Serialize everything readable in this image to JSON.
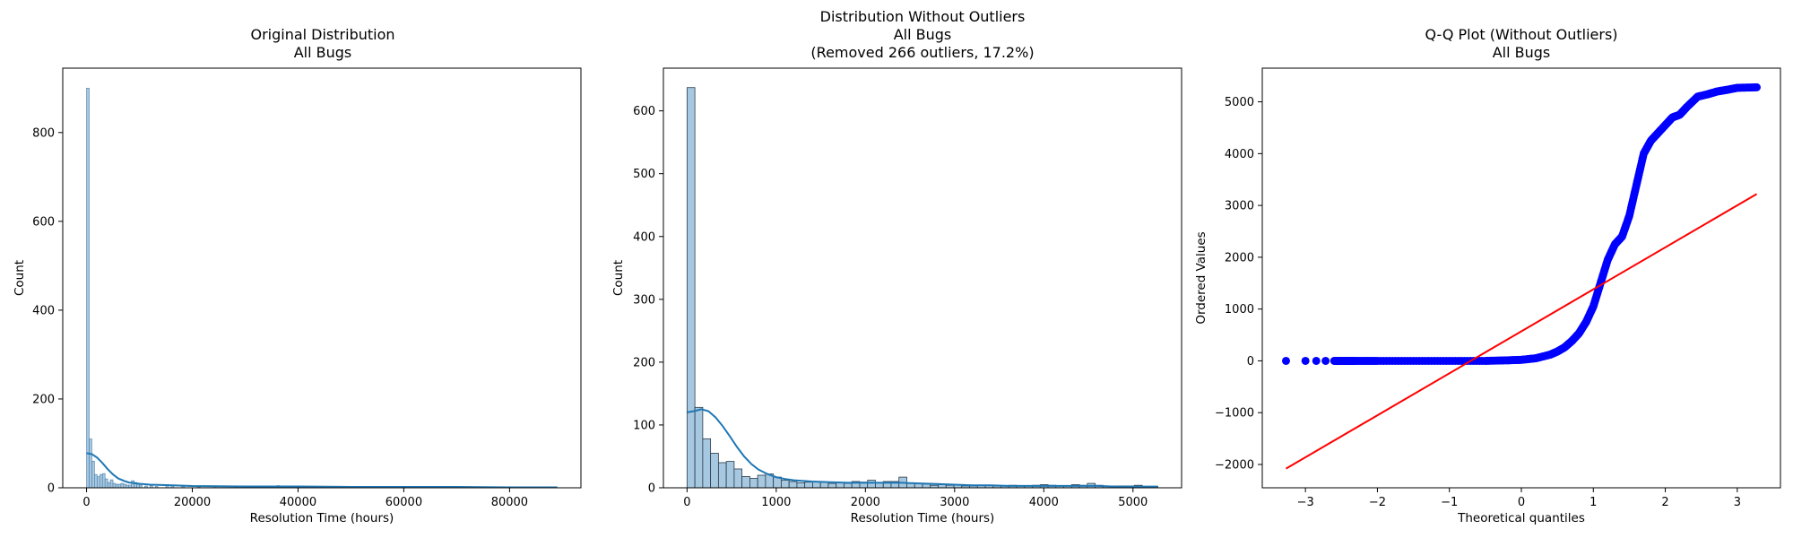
{
  "chart_data": [
    {
      "type": "histogram",
      "title": [
        "Original Distribution",
        "All Bugs"
      ],
      "xlabel": "Resolution Time (hours)",
      "ylabel": "Count",
      "xlim": [
        -4500,
        93500
      ],
      "ylim": [
        0,
        945
      ],
      "xticks": [
        0,
        20000,
        40000,
        60000,
        80000
      ],
      "yticks": [
        0,
        200,
        400,
        600,
        800
      ],
      "bin_width": 500,
      "bins": [
        {
          "x": 0,
          "count": 900
        },
        {
          "x": 500,
          "count": 110
        },
        {
          "x": 1000,
          "count": 60
        },
        {
          "x": 1500,
          "count": 30
        },
        {
          "x": 2000,
          "count": 25
        },
        {
          "x": 2500,
          "count": 30
        },
        {
          "x": 3000,
          "count": 32
        },
        {
          "x": 3500,
          "count": 20
        },
        {
          "x": 4000,
          "count": 12
        },
        {
          "x": 4500,
          "count": 18
        },
        {
          "x": 5000,
          "count": 10
        },
        {
          "x": 5500,
          "count": 8
        },
        {
          "x": 6000,
          "count": 8
        },
        {
          "x": 6500,
          "count": 10
        },
        {
          "x": 7000,
          "count": 8
        },
        {
          "x": 7500,
          "count": 6
        },
        {
          "x": 8000,
          "count": 6
        },
        {
          "x": 8500,
          "count": 16
        },
        {
          "x": 9000,
          "count": 12
        },
        {
          "x": 9500,
          "count": 8
        },
        {
          "x": 10000,
          "count": 6
        },
        {
          "x": 11000,
          "count": 4
        },
        {
          "x": 12000,
          "count": 5
        },
        {
          "x": 13000,
          "count": 3
        },
        {
          "x": 15000,
          "count": 7
        },
        {
          "x": 16000,
          "count": 4
        },
        {
          "x": 18000,
          "count": 3
        },
        {
          "x": 21000,
          "count": 2
        },
        {
          "x": 24000,
          "count": 3
        },
        {
          "x": 28000,
          "count": 2
        },
        {
          "x": 33000,
          "count": 2
        },
        {
          "x": 36000,
          "count": 5
        },
        {
          "x": 41000,
          "count": 2
        },
        {
          "x": 46000,
          "count": 2
        },
        {
          "x": 53000,
          "count": 3
        },
        {
          "x": 58000,
          "count": 2
        },
        {
          "x": 64000,
          "count": 2
        },
        {
          "x": 70000,
          "count": 3
        },
        {
          "x": 76000,
          "count": 2
        },
        {
          "x": 82000,
          "count": 2
        },
        {
          "x": 88500,
          "count": 2
        }
      ],
      "kde": [
        [
          0,
          78
        ],
        [
          1000,
          76
        ],
        [
          2000,
          68
        ],
        [
          3000,
          56
        ],
        [
          4000,
          42
        ],
        [
          5000,
          30
        ],
        [
          6000,
          21
        ],
        [
          7000,
          16
        ],
        [
          8000,
          12
        ],
        [
          10000,
          9
        ],
        [
          12000,
          7
        ],
        [
          15000,
          6
        ],
        [
          20000,
          4
        ],
        [
          30000,
          3
        ],
        [
          40000,
          3
        ],
        [
          50000,
          2
        ],
        [
          60000,
          2
        ],
        [
          70000,
          2
        ],
        [
          80000,
          1
        ],
        [
          89000,
          1
        ]
      ]
    },
    {
      "type": "histogram",
      "title": [
        "Distribution Without Outliers",
        "All Bugs",
        "(Removed 266 outliers, 17.2%)"
      ],
      "xlabel": "Resolution Time (hours)",
      "ylabel": "Count",
      "xlim": [
        -265,
        5545
      ],
      "ylim": [
        0,
        668
      ],
      "xticks": [
        0,
        1000,
        2000,
        3000,
        4000,
        5000
      ],
      "yticks": [
        0,
        100,
        200,
        300,
        400,
        500,
        600
      ],
      "bin_width": 88,
      "bin_start": 0,
      "counts": [
        637,
        128,
        78,
        55,
        40,
        42,
        30,
        18,
        15,
        20,
        22,
        17,
        12,
        10,
        8,
        9,
        10,
        9,
        7,
        8,
        7,
        10,
        9,
        12,
        8,
        10,
        10,
        17,
        8,
        7,
        6,
        4,
        5,
        4,
        5,
        3,
        3,
        4,
        4,
        3,
        3,
        4,
        3,
        3,
        4,
        5,
        4,
        3,
        3,
        5,
        4,
        7,
        4,
        3,
        3,
        3,
        3,
        4,
        2,
        2
      ],
      "kde": [
        [
          0,
          120
        ],
        [
          80,
          122
        ],
        [
          160,
          125
        ],
        [
          240,
          122
        ],
        [
          320,
          112
        ],
        [
          400,
          98
        ],
        [
          480,
          82
        ],
        [
          560,
          65
        ],
        [
          640,
          50
        ],
        [
          720,
          38
        ],
        [
          800,
          29
        ],
        [
          900,
          22
        ],
        [
          1000,
          17
        ],
        [
          1100,
          14
        ],
        [
          1200,
          12
        ],
        [
          1400,
          10
        ],
        [
          1600,
          9
        ],
        [
          1800,
          8
        ],
        [
          2000,
          8
        ],
        [
          2200,
          8
        ],
        [
          2400,
          8
        ],
        [
          2600,
          7
        ],
        [
          2800,
          6
        ],
        [
          3000,
          5
        ],
        [
          3200,
          4
        ],
        [
          3400,
          4
        ],
        [
          3600,
          3
        ],
        [
          3800,
          3
        ],
        [
          4000,
          3
        ],
        [
          4200,
          3
        ],
        [
          4400,
          3
        ],
        [
          4600,
          3
        ],
        [
          4800,
          2
        ],
        [
          5000,
          2
        ],
        [
          5280,
          2
        ]
      ]
    },
    {
      "type": "scatter",
      "title": [
        "Q-Q Plot (Without Outliers)",
        "All Bugs"
      ],
      "xlabel": "Theoretical quantiles",
      "ylabel": "Ordered Values",
      "xlim": [
        -3.6,
        3.6
      ],
      "ylim": [
        -2450,
        5650
      ],
      "xticks": [
        -3,
        -2,
        -1,
        0,
        1,
        2,
        3
      ],
      "yticks": [
        -2000,
        -1000,
        0,
        1000,
        2000,
        3000,
        4000,
        5000
      ],
      "points": [
        [
          -3.27,
          0
        ],
        [
          -3.0,
          0
        ],
        [
          -2.85,
          0
        ],
        [
          -2.72,
          0
        ],
        [
          -2.6,
          0
        ],
        [
          -2.45,
          0
        ],
        [
          -2.3,
          0
        ],
        [
          -2.0,
          0
        ],
        [
          -1.5,
          0
        ],
        [
          -1.0,
          0
        ],
        [
          -0.5,
          0
        ],
        [
          -0.2,
          10
        ],
        [
          0.0,
          20
        ],
        [
          0.2,
          50
        ],
        [
          0.4,
          120
        ],
        [
          0.5,
          180
        ],
        [
          0.6,
          260
        ],
        [
          0.7,
          380
        ],
        [
          0.8,
          530
        ],
        [
          0.9,
          750
        ],
        [
          1.0,
          1050
        ],
        [
          1.1,
          1500
        ],
        [
          1.2,
          1950
        ],
        [
          1.3,
          2250
        ],
        [
          1.4,
          2400
        ],
        [
          1.5,
          2800
        ],
        [
          1.6,
          3400
        ],
        [
          1.7,
          4000
        ],
        [
          1.8,
          4250
        ],
        [
          1.9,
          4400
        ],
        [
          2.0,
          4550
        ],
        [
          2.1,
          4700
        ],
        [
          2.2,
          4750
        ],
        [
          2.3,
          4900
        ],
        [
          2.45,
          5100
        ],
        [
          2.6,
          5150
        ],
        [
          2.72,
          5200
        ],
        [
          2.85,
          5230
        ],
        [
          3.0,
          5270
        ],
        [
          3.27,
          5280
        ]
      ],
      "fit_line": [
        [
          -3.27,
          -2080
        ],
        [
          3.27,
          3220
        ]
      ]
    }
  ]
}
